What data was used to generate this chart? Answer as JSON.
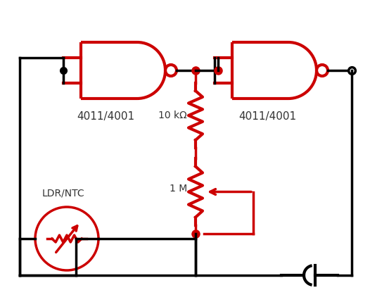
{
  "background_color": "#ffffff",
  "circuit_color": "#cc0000",
  "wire_color": "#000000",
  "text_color": "#333333",
  "label1": "4011/4001",
  "label2": "4011/4001",
  "label_10k": "10 kΩ",
  "label_1m": "1 M",
  "label_ldr": "LDR/NTC",
  "figsize": [
    5.26,
    4.29
  ],
  "dpi": 100
}
